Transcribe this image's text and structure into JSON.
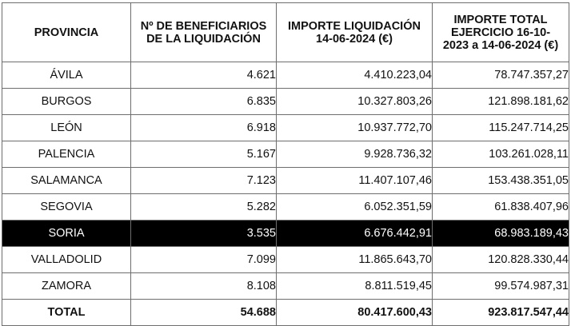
{
  "table": {
    "headers": [
      "PROVINCIA",
      "Nº DE BENEFICIARIOS DE LA LIQUIDACIÓN",
      "IMPORTE LIQUIDACIÓN 14-06-2024 (€)",
      "IMPORTE TOTAL EJERCICIO 16-10-2023 a 14-06-2024 (€)"
    ],
    "rows": [
      {
        "provincia": "ÁVILA",
        "beneficiarios": "4.621",
        "importe_liquidacion": "4.410.223,04",
        "importe_total": "78.747.357,27"
      },
      {
        "provincia": "BURGOS",
        "beneficiarios": "6.835",
        "importe_liquidacion": "10.327.803,26",
        "importe_total": "121.898.181,62"
      },
      {
        "provincia": "LEÓN",
        "beneficiarios": "6.918",
        "importe_liquidacion": "10.937.772,70",
        "importe_total": "115.247.714,25"
      },
      {
        "provincia": "PALENCIA",
        "beneficiarios": "5.167",
        "importe_liquidacion": "9.928.736,32",
        "importe_total": "103.261.028,11"
      },
      {
        "provincia": "SALAMANCA",
        "beneficiarios": "7.123",
        "importe_liquidacion": "11.407.107,46",
        "importe_total": "153.438.351,05"
      },
      {
        "provincia": "SEGOVIA",
        "beneficiarios": "5.282",
        "importe_liquidacion": "6.052.351,59",
        "importe_total": "61.838.407,96"
      },
      {
        "provincia": "SORIA",
        "beneficiarios": "3.535",
        "importe_liquidacion": "6.676.442,91",
        "importe_total": "68.983.189,43"
      },
      {
        "provincia": "VALLADOLID",
        "beneficiarios": "7.099",
        "importe_liquidacion": "11.865.643,70",
        "importe_total": "120.828.330,44"
      },
      {
        "provincia": "ZAMORA",
        "beneficiarios": "8.108",
        "importe_liquidacion": "8.811.519,45",
        "importe_total": "99.574.987,31"
      }
    ],
    "total": {
      "provincia": "TOTAL",
      "beneficiarios": "54.688",
      "importe_liquidacion": "80.417.600,43",
      "importe_total": "923.817.547,44"
    },
    "highlighted_row": "SORIA",
    "colors": {
      "highlight_bg": "#000000",
      "highlight_text": "#ffffff",
      "border": "#6e6e6e",
      "text": "#111111"
    }
  }
}
